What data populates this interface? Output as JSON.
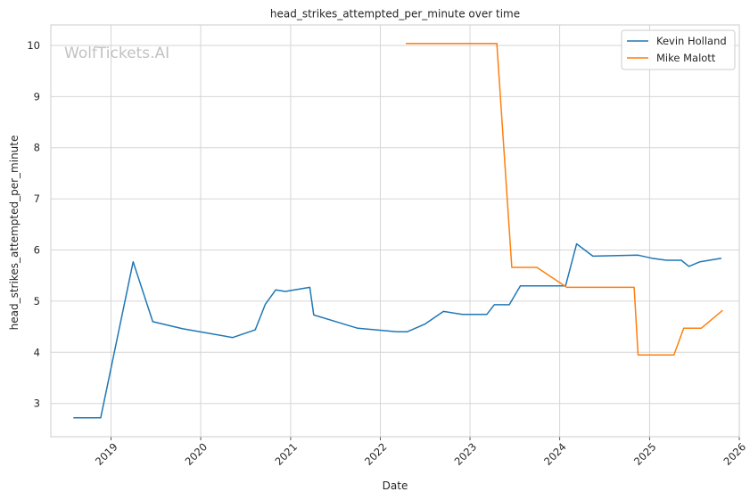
{
  "chart_data": {
    "type": "line",
    "title": "head_strikes_attempted_per_minute over time",
    "xlabel": "Date",
    "ylabel": "head_strikes_attempted_per_minute",
    "watermark": "WolfTickets.AI",
    "x_axis": "date",
    "xlim": [
      "2018-05-01",
      "2026-01-01"
    ],
    "ylim": [
      2.35,
      10.4
    ],
    "x_ticks": [
      "2019",
      "2020",
      "2021",
      "2022",
      "2023",
      "2024",
      "2025",
      "2026"
    ],
    "y_ticks": [
      3,
      4,
      5,
      6,
      7,
      8,
      9,
      10
    ],
    "grid": true,
    "legend_position": "top-right",
    "series": [
      {
        "name": "Kevin Holland",
        "color": "#1f77b4",
        "points": [
          [
            "2018-08-01",
            2.72
          ],
          [
            "2018-11-20",
            2.72
          ],
          [
            "2019-04-01",
            5.77
          ],
          [
            "2019-06-20",
            4.6
          ],
          [
            "2019-10-20",
            4.46
          ],
          [
            "2020-05-10",
            4.29
          ],
          [
            "2020-08-10",
            4.44
          ],
          [
            "2020-09-20",
            4.94
          ],
          [
            "2020-11-01",
            5.22
          ],
          [
            "2020-12-10",
            5.19
          ],
          [
            "2021-03-20",
            5.27
          ],
          [
            "2021-04-05",
            4.73
          ],
          [
            "2021-10-01",
            4.47
          ],
          [
            "2022-03-10",
            4.4
          ],
          [
            "2022-04-20",
            4.4
          ],
          [
            "2022-07-01",
            4.55
          ],
          [
            "2022-09-15",
            4.8
          ],
          [
            "2022-12-01",
            4.74
          ],
          [
            "2023-03-10",
            4.74
          ],
          [
            "2023-04-10",
            4.93
          ],
          [
            "2023-06-10",
            4.93
          ],
          [
            "2023-07-25",
            5.3
          ],
          [
            "2024-01-25",
            5.3
          ],
          [
            "2024-03-10",
            6.12
          ],
          [
            "2024-05-15",
            5.88
          ],
          [
            "2024-11-15",
            5.9
          ],
          [
            "2025-01-10",
            5.84
          ],
          [
            "2025-03-10",
            5.8
          ],
          [
            "2025-05-10",
            5.8
          ],
          [
            "2025-06-10",
            5.68
          ],
          [
            "2025-07-25",
            5.77
          ],
          [
            "2025-10-20",
            5.84
          ]
        ]
      },
      {
        "name": "Mike Malott",
        "color": "#ff7f0e",
        "points": [
          [
            "2022-04-15",
            10.04
          ],
          [
            "2023-04-20",
            10.04
          ],
          [
            "2023-06-20",
            5.66
          ],
          [
            "2023-09-30",
            5.66
          ],
          [
            "2024-01-30",
            5.27
          ],
          [
            "2024-10-30",
            5.27
          ],
          [
            "2024-11-15",
            3.95
          ],
          [
            "2025-04-10",
            3.95
          ],
          [
            "2025-05-20",
            4.47
          ],
          [
            "2025-07-30",
            4.47
          ],
          [
            "2025-10-25",
            4.82
          ]
        ]
      }
    ]
  }
}
